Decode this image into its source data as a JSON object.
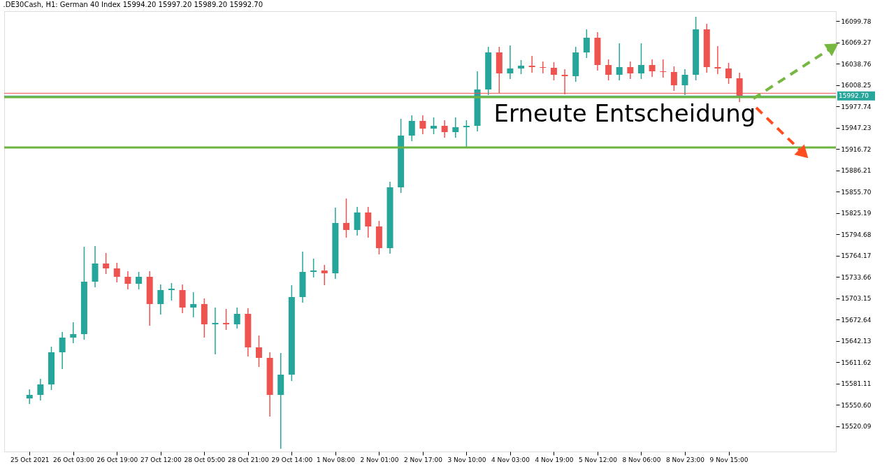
{
  "chart_data": {
    "type": "candlestick",
    "title": ".DE30Cash, H1:  German 40 Index  15994.20 15997.20 15989.20 15992.70",
    "categories": [
      "25 Oct 2021",
      null,
      null,
      null,
      "26 Oct 03:00",
      null,
      null,
      null,
      "26 Oct 19:00",
      null,
      null,
      null,
      "27 Oct 12:00",
      null,
      null,
      null,
      "28 Oct 05:00",
      null,
      null,
      null,
      "28 Oct 21:00",
      null,
      null,
      null,
      "29 Oct 14:00",
      null,
      null,
      null,
      "1 Nov 08:00",
      null,
      null,
      null,
      "2 Nov 01:00",
      null,
      null,
      null,
      "2 Nov 17:00",
      null,
      null,
      null,
      "3 Nov 10:00",
      null,
      null,
      null,
      "4 Nov 03:00",
      null,
      null,
      null,
      "4 Nov 19:00",
      null,
      null,
      null,
      "5 Nov 12:00",
      null,
      null,
      null,
      "8 Nov 06:00",
      null,
      null,
      null,
      "8 Nov 23:00",
      null,
      null,
      null,
      "9 Nov 15:00",
      null,
      null,
      null,
      null,
      null,
      null,
      null,
      null,
      null
    ],
    "ohlc": [
      [
        15560,
        15573,
        15552,
        15565
      ],
      [
        15565,
        15588,
        15557,
        15580
      ],
      [
        15580,
        15634,
        15572,
        15626
      ],
      [
        15626,
        15655,
        15602,
        15647
      ],
      [
        15647,
        15669,
        15639,
        15652
      ],
      [
        15652,
        15777,
        15644,
        15727
      ],
      [
        15727,
        15778,
        15719,
        15753
      ],
      [
        15753,
        15768,
        15738,
        15746
      ],
      [
        15746,
        15754,
        15726,
        15734
      ],
      [
        15734,
        15742,
        15716,
        15724
      ],
      [
        15724,
        15741,
        15716,
        15734
      ],
      [
        15734,
        15742,
        15664,
        15695
      ],
      [
        15695,
        15723,
        15680,
        15715
      ],
      [
        15715,
        15725,
        15700,
        15717
      ],
      [
        15715,
        15723,
        15682,
        15690
      ],
      [
        15690,
        15712,
        15676,
        15695
      ],
      [
        15695,
        15703,
        15647,
        15666
      ],
      [
        15666,
        15690,
        15623,
        15668
      ],
      [
        15668,
        15688,
        15658,
        15666
      ],
      [
        15666,
        15690,
        15660,
        15681
      ],
      [
        15681,
        15689,
        15620,
        15633
      ],
      [
        15633,
        15650,
        15605,
        15618
      ],
      [
        15618,
        15626,
        15534,
        15565
      ],
      [
        15565,
        15625,
        15488,
        15594
      ],
      [
        15594,
        15722,
        15585,
        15705
      ],
      [
        15705,
        15770,
        15697,
        15741
      ],
      [
        15741,
        15760,
        15733,
        15743
      ],
      [
        15743,
        15751,
        15722,
        15739
      ],
      [
        15739,
        15833,
        15731,
        15811
      ],
      [
        15811,
        15846,
        15790,
        15801
      ],
      [
        15801,
        15834,
        15793,
        15826
      ],
      [
        15826,
        15834,
        15790,
        15806
      ],
      [
        15806,
        15814,
        15766,
        15775
      ],
      [
        15775,
        15870,
        15767,
        15862
      ],
      [
        15862,
        15960,
        15854,
        15936
      ],
      [
        15936,
        15965,
        15928,
        15957
      ],
      [
        15957,
        15965,
        15938,
        15946
      ],
      [
        15946,
        15962,
        15938,
        15950
      ],
      [
        15950,
        15958,
        15933,
        15941
      ],
      [
        15941,
        15962,
        15933,
        15948
      ],
      [
        15948,
        15958,
        15919,
        15950
      ],
      [
        15950,
        16028,
        15942,
        16002
      ],
      [
        16002,
        16063,
        15994,
        16055
      ],
      [
        16055,
        16063,
        15997,
        16025
      ],
      [
        16025,
        16065,
        16017,
        16032
      ],
      [
        16032,
        16044,
        16024,
        16036
      ],
      [
        16036,
        16050,
        16026,
        16034
      ],
      [
        16034,
        16042,
        16025,
        16033
      ],
      [
        16033,
        16041,
        16015,
        16023
      ],
      [
        16023,
        16031,
        15995,
        16021
      ],
      [
        16021,
        16063,
        16013,
        16055
      ],
      [
        16055,
        16088,
        16047,
        16076
      ],
      [
        16076,
        16084,
        16029,
        16037
      ],
      [
        16037,
        16045,
        16015,
        16023
      ],
      [
        16023,
        16068,
        16015,
        16034
      ],
      [
        16034,
        16042,
        16017,
        16025
      ],
      [
        16025,
        16068,
        16017,
        16037
      ],
      [
        16037,
        16045,
        16020,
        16028
      ],
      [
        16028,
        16045,
        16019,
        16027
      ],
      [
        16027,
        16035,
        16000,
        16008
      ],
      [
        16008,
        16031,
        15994,
        16023
      ],
      [
        16023,
        16106,
        16015,
        16088
      ],
      [
        16088,
        16096,
        16026,
        16034
      ],
      [
        16034,
        16064,
        16024,
        16032
      ],
      [
        16032,
        16040,
        16010,
        16018
      ],
      [
        16018,
        16026,
        15984,
        15993
      ],
      null,
      null,
      null,
      null,
      null,
      null,
      null,
      null
    ],
    "colors": [
      "#26a69a",
      "#26a69a",
      "#26a69a",
      "#26a69a",
      "#26a69a",
      "#26a69a",
      "#26a69a",
      "#ef5350",
      "#ef5350",
      "#ef5350",
      "#26a69a",
      "#ef5350",
      "#26a69a",
      "#26a69a",
      "#ef5350",
      "#26a69a",
      "#ef5350",
      "#26a69a",
      "#ef5350",
      "#26a69a",
      "#ef5350",
      "#ef5350",
      "#ef5350",
      "#26a69a",
      "#26a69a",
      "#26a69a",
      "#26a69a",
      "#ef5350",
      "#26a69a",
      "#ef5350",
      "#26a69a",
      "#ef5350",
      "#ef5350",
      "#26a69a",
      "#26a69a",
      "#26a69a",
      "#ef5350",
      "#26a69a",
      "#ef5350",
      "#26a69a",
      "#26a69a",
      "#26a69a",
      "#26a69a",
      "#ef5350",
      "#26a69a",
      "#26a69a",
      "#ef5350",
      "#ef5350",
      "#ef5350",
      "#ef5350",
      "#26a69a",
      "#26a69a",
      "#ef5350",
      "#ef5350",
      "#26a69a",
      "#ef5350",
      "#26a69a",
      "#ef5350",
      "#ef5350",
      "#ef5350",
      "#26a69a",
      "#26a69a",
      "#ef5350",
      "#ef5350",
      "#ef5350",
      "#ef5350",
      null,
      null,
      null,
      null,
      null,
      null,
      null,
      null
    ],
    "ylim": [
      15484,
      16114
    ],
    "yticks": [
      15520.09,
      {
        "value": 15550.6,
        "label": "15550.60"
      },
      15581.11,
      15611.62,
      15642.13,
      15672.64,
      15703.15,
      15733.66,
      15764.17,
      15794.68,
      15825.19,
      {
        "value": 15855.7,
        "label": "15855.70"
      },
      15886.21,
      15916.72,
      15947.23,
      15977.74,
      16008.25,
      16038.76,
      16069.27,
      16099.78
    ],
    "ref_lines": [
      {
        "axis": "y",
        "value": 15996.6,
        "color": "#ef5350"
      },
      {
        "axis": "y",
        "value": 15992.7,
        "label": "15992.70",
        "color": "#26a69a"
      },
      {
        "axis": "y",
        "value": 15991,
        "color": "#6db33f"
      },
      {
        "axis": "y",
        "value": 15919,
        "color": "#6db33f"
      }
    ],
    "annotations": [
      {
        "text": "Erneute Entscheidung",
        "y": 15991
      }
    ]
  }
}
